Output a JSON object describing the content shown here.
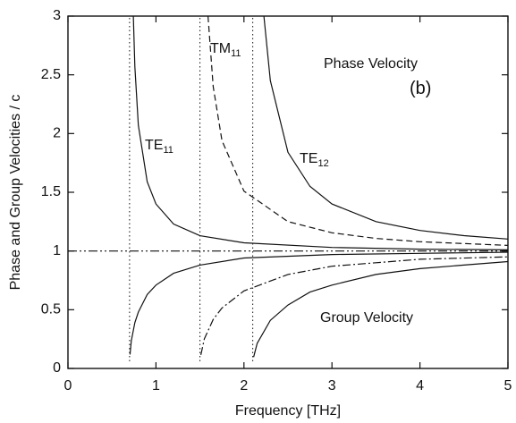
{
  "chart_data": {
    "type": "line",
    "x_label": "Frequency [THz]",
    "y_label": "Phase and Group Velocities / c",
    "xlim": [
      0,
      5
    ],
    "ylim": [
      0,
      3
    ],
    "xticks": [
      0,
      1,
      2,
      3,
      4,
      5
    ],
    "yticks": [
      0,
      0.5,
      1,
      1.5,
      2,
      2.5,
      3
    ],
    "cutoffs": [
      0.7,
      1.5,
      2.1
    ],
    "series": [
      {
        "color": "#111",
        "dash": "solid",
        "x": [
          0.743,
          0.76,
          0.8,
          0.9,
          1.0,
          1.2,
          1.5,
          2,
          3,
          4,
          5
        ],
        "values": [
          3.0,
          2.57,
          2.07,
          1.59,
          1.4,
          1.23,
          1.13,
          1.07,
          1.03,
          1.016,
          1.01
        ]
      },
      {
        "color": "#111",
        "dash": "solid",
        "x": [
          0.705,
          0.72,
          0.76,
          0.8,
          0.9,
          1.0,
          1.2,
          1.5,
          2,
          3,
          4,
          5
        ],
        "values": [
          0.119,
          0.234,
          0.39,
          0.48,
          0.63,
          0.71,
          0.81,
          0.88,
          0.94,
          0.97,
          0.98,
          0.99
        ]
      },
      {
        "color": "#111",
        "dash": "dashed",
        "x": [
          1.591,
          1.65,
          1.75,
          2,
          2.5,
          3,
          3.5,
          4,
          5
        ],
        "values": [
          3.0,
          2.4,
          1.94,
          1.51,
          1.25,
          1.155,
          1.107,
          1.079,
          1.048
        ]
      },
      {
        "color": "#111",
        "dash": "dashdot",
        "x": [
          1.51,
          1.55,
          1.65,
          1.75,
          2,
          2.5,
          3,
          3.5,
          4,
          5
        ],
        "values": [
          0.115,
          0.252,
          0.417,
          0.515,
          0.66,
          0.8,
          0.87,
          0.9,
          0.93,
          0.95
        ]
      },
      {
        "color": "#111",
        "dash": "solid",
        "x": [
          2.227,
          2.3,
          2.5,
          2.75,
          3,
          3.5,
          4,
          4.5,
          5
        ],
        "values": [
          3.0,
          2.45,
          1.84,
          1.55,
          1.4,
          1.25,
          1.175,
          1.131,
          1.102
        ]
      },
      {
        "color": "#111",
        "dash": "solid",
        "x": [
          2.11,
          2.15,
          2.3,
          2.5,
          2.75,
          3,
          3.5,
          4,
          4.5,
          5
        ],
        "values": [
          0.097,
          0.214,
          0.41,
          0.54,
          0.65,
          0.71,
          0.8,
          0.85,
          0.88,
          0.91
        ]
      },
      {
        "color": "#111",
        "dash": "dashdotdot",
        "x": [
          0,
          5
        ],
        "values": [
          1,
          1
        ]
      }
    ],
    "annotations": [
      {
        "text": "TE",
        "sub": "11"
      },
      {
        "text": "TM",
        "sub": "11"
      },
      {
        "text": "TE",
        "sub": "12"
      },
      {
        "text": "Phase Velocity"
      },
      {
        "text": "(b)"
      },
      {
        "text": "Group Velocity"
      }
    ]
  }
}
